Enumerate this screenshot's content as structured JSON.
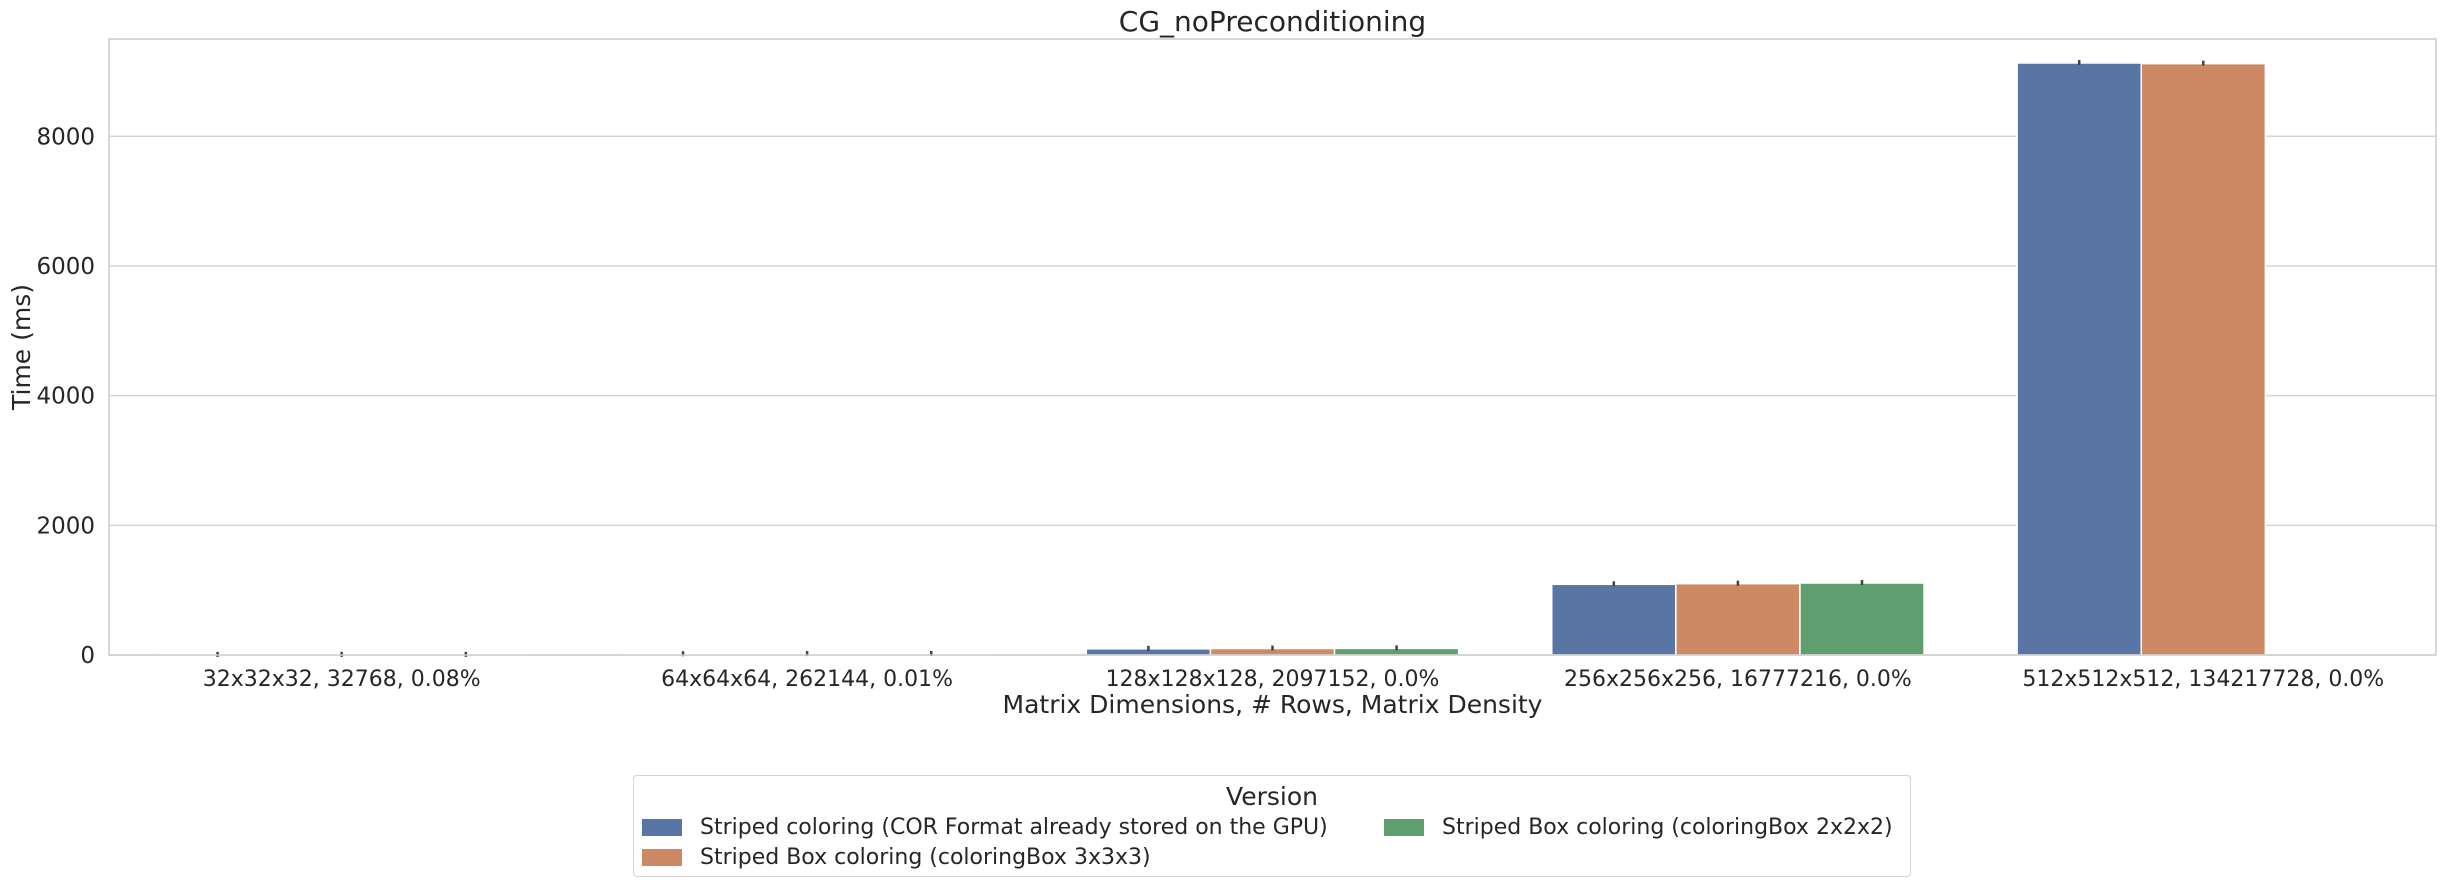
{
  "chart_data": {
    "type": "bar",
    "title": "CG_noPreconditioning",
    "xlabel": "Matrix Dimensions, # Rows, Matrix Density",
    "ylabel": "Time (ms)",
    "ylim": [
      0,
      9500
    ],
    "yticks": [
      0,
      2000,
      4000,
      6000,
      8000
    ],
    "ytick_labels": [
      "0",
      "2000",
      "4000",
      "6000",
      "8000"
    ],
    "grid": true,
    "categories": [
      "32x32x32, 32768, 0.08%",
      "64x64x64, 262144, 0.01%",
      "128x128x128, 2097152, 0.0%",
      "256x256x256, 16777216, 0.0%",
      "512x512x512, 134217728, 0.0%"
    ],
    "series": [
      {
        "name": "Striped coloring (COR Format already stored on the GPU)",
        "color": "#5875a4",
        "values": [
          2,
          12,
          95,
          1090,
          9130
        ]
      },
      {
        "name": "Striped Box coloring (coloringBox 3x3x3)",
        "color": "#cc8963",
        "values": [
          2,
          14,
          100,
          1100,
          9120
        ]
      },
      {
        "name": "Striped Box coloring (coloringBox 2x2x2)",
        "color": "#5f9e6e",
        "values": [
          2,
          15,
          102,
          1110,
          null
        ]
      }
    ],
    "legend": {
      "title": "Version",
      "position": "bottom-center",
      "columns": 2
    }
  }
}
